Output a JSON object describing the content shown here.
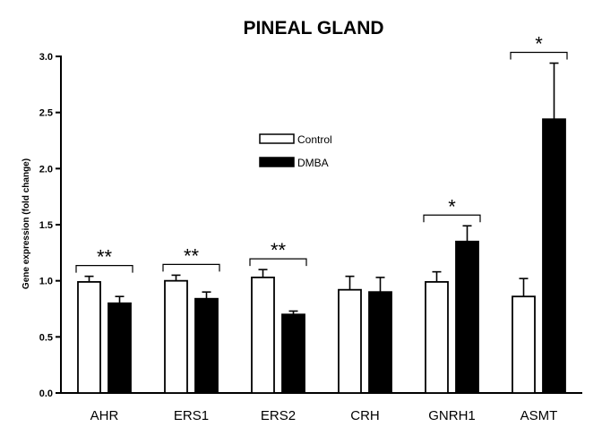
{
  "chart_data": {
    "type": "bar",
    "title": "PINEAL GLAND",
    "xlabel": "",
    "ylabel": "Gene expression (fold change)",
    "ylim": [
      0,
      3.0
    ],
    "yticks": [
      "0.0",
      "0.5",
      "1.0",
      "1.5",
      "2.0",
      "2.5",
      "3.0"
    ],
    "categories": [
      "AHR",
      "ERS1",
      "ERS2",
      "CRH",
      "GNRH1",
      "ASMT"
    ],
    "series": [
      {
        "name": "Control",
        "color": "#ffffff",
        "values": [
          0.99,
          1.0,
          1.03,
          0.92,
          0.99,
          0.86
        ],
        "errors": [
          0.05,
          0.05,
          0.07,
          0.12,
          0.09,
          0.16
        ]
      },
      {
        "name": "DMBA",
        "color": "#000000",
        "values": [
          0.8,
          0.84,
          0.7,
          0.9,
          1.35,
          2.44
        ],
        "errors": [
          0.06,
          0.06,
          0.03,
          0.13,
          0.14,
          0.5
        ]
      }
    ],
    "significance": [
      "**",
      "**",
      "**",
      "",
      "*",
      "*"
    ],
    "legend_position": "center-top",
    "grid": false
  }
}
